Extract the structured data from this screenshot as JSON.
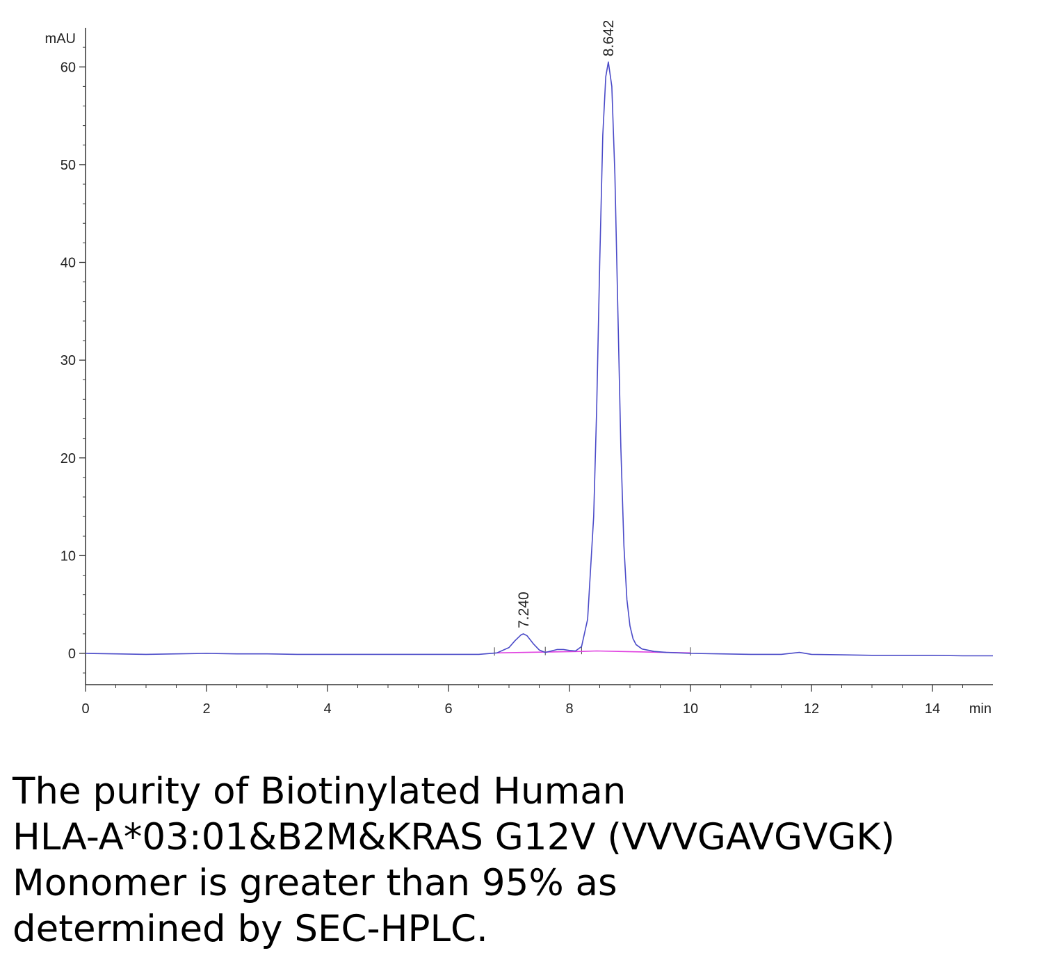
{
  "chart_data": {
    "type": "line",
    "title": "",
    "xlabel": "min",
    "ylabel": "mAU",
    "xlim": [
      0,
      15
    ],
    "ylim": [
      -3.2,
      64
    ],
    "x_ticks": [
      0,
      2,
      4,
      6,
      8,
      10,
      12,
      14
    ],
    "y_ticks": [
      0,
      10,
      20,
      30,
      40,
      50,
      60
    ],
    "x_tick_labels": [
      "0",
      "2",
      "4",
      "6",
      "8",
      "10",
      "12",
      "14"
    ],
    "y_tick_labels": [
      "0",
      "10",
      "20",
      "30",
      "40",
      "50",
      "60"
    ],
    "grid": false,
    "series": [
      {
        "color": "#4a4ac8",
        "x": [
          0,
          0.5,
          1,
          1.5,
          2,
          2.5,
          3,
          3.5,
          4,
          4.5,
          5,
          5.5,
          6,
          6.5,
          6.8,
          7.0,
          7.1,
          7.2,
          7.24,
          7.3,
          7.4,
          7.5,
          7.6,
          7.7,
          7.8,
          7.9,
          8.0,
          8.1,
          8.2,
          8.3,
          8.4,
          8.45,
          8.5,
          8.55,
          8.6,
          8.642,
          8.7,
          8.75,
          8.8,
          8.85,
          8.9,
          8.95,
          9.0,
          9.05,
          9.1,
          9.2,
          9.4,
          9.6,
          10,
          10.5,
          11,
          11.5,
          11.8,
          12,
          12.5,
          13,
          13.5,
          14,
          14.5,
          15
        ],
        "y": [
          0.0,
          -0.05,
          -0.1,
          -0.05,
          0.0,
          -0.05,
          -0.05,
          -0.1,
          -0.1,
          -0.1,
          -0.1,
          -0.1,
          -0.1,
          -0.1,
          0.05,
          0.6,
          1.3,
          1.9,
          2.0,
          1.8,
          1.0,
          0.35,
          0.1,
          0.25,
          0.4,
          0.4,
          0.3,
          0.25,
          0.7,
          3.5,
          14.0,
          25.0,
          40.0,
          53.0,
          59.0,
          60.5,
          58.0,
          49.0,
          35.0,
          21.0,
          11.0,
          5.5,
          2.8,
          1.5,
          0.9,
          0.45,
          0.2,
          0.1,
          0.0,
          -0.05,
          -0.1,
          -0.1,
          0.1,
          -0.1,
          -0.15,
          -0.2,
          -0.2,
          -0.2,
          -0.25,
          -0.25
        ]
      },
      {
        "color": "#e040e0",
        "x": [
          6.8,
          7.7,
          8.2,
          8.45,
          10.0
        ],
        "y": [
          0.05,
          0.15,
          0.2,
          0.25,
          0.05
        ]
      }
    ],
    "annotations": [
      {
        "text": "7.240",
        "x": 7.24,
        "y": 2.0
      },
      {
        "text": "8.642",
        "x": 8.642,
        "y": 60.5
      }
    ]
  },
  "caption": {
    "lines": [
      "The purity of Biotinylated Human",
      "HLA-A*03:01&B2M&KRAS G12V (VVVGAVGVGK)",
      "Monomer is greater than 95% as",
      "determined by SEC-HPLC."
    ]
  }
}
